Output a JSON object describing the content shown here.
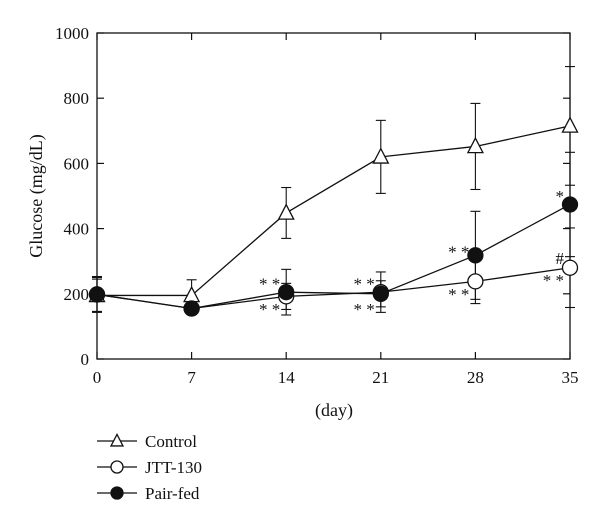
{
  "chart_data": {
    "type": "line",
    "title": "",
    "xlabel": "(day)",
    "ylabel": "Glucose (mg/dL)",
    "x": [
      0,
      7,
      14,
      21,
      28,
      35
    ],
    "xticks": [
      "0",
      "7",
      "14",
      "21",
      "28",
      "35"
    ],
    "yticks": [
      "0",
      "200",
      "400",
      "600",
      "800",
      "1000"
    ],
    "xlim": [
      0,
      35
    ],
    "ylim": [
      0,
      1000
    ],
    "grid": false,
    "legend_position": "bottom-left",
    "series": [
      {
        "name": "Control",
        "marker": "triangle-open",
        "values": [
          195,
          195,
          448,
          620,
          652,
          715
        ],
        "error": [
          50,
          48,
          78,
          112,
          132,
          182
        ]
      },
      {
        "name": "JTT-130",
        "marker": "circle-open",
        "values": [
          198,
          155,
          192,
          205,
          238,
          280
        ],
        "error": [
          52,
          10,
          40,
          62,
          68,
          122
        ]
      },
      {
        "name": "Pair-fed",
        "marker": "circle-filled",
        "values": [
          198,
          155,
          205,
          200,
          318,
          474
        ],
        "error": [
          55,
          10,
          70,
          40,
          135,
          160
        ]
      }
    ],
    "annotations": [
      {
        "text": "* *",
        "x": 14,
        "y": 232
      },
      {
        "text": "* *",
        "x": 14,
        "y": 153
      },
      {
        "text": "* *",
        "x": 21,
        "y": 232
      },
      {
        "text": "* *",
        "x": 21,
        "y": 153
      },
      {
        "text": "* *",
        "x": 28,
        "y": 330
      },
      {
        "text": "* *",
        "x": 28,
        "y": 200
      },
      {
        "text": "*",
        "x": 35,
        "y": 500
      },
      {
        "text": "#",
        "x": 35,
        "y": 310
      },
      {
        "text": "* *",
        "x": 35,
        "y": 243
      }
    ]
  }
}
